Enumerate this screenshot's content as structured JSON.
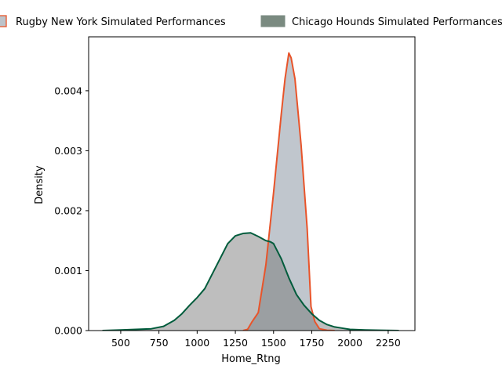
{
  "chart_data": {
    "type": "area",
    "title": "",
    "xlabel": "Home_Rtng",
    "ylabel": "Density",
    "xlim": [
      290,
      2425
    ],
    "ylim": [
      0,
      0.0049
    ],
    "xticks": [
      500,
      750,
      1000,
      1250,
      1500,
      1750,
      2000,
      2250
    ],
    "yticks": [
      0.0,
      0.001,
      0.002,
      0.003,
      0.004
    ],
    "ytick_labels": [
      "0.000",
      "0.001",
      "0.002",
      "0.003",
      "0.004"
    ],
    "legend_placement": "top, above plot, two columns",
    "grid": false,
    "series": [
      {
        "name": "Rugby New York Simulated Performances",
        "fill_color": "#bdc3ca",
        "line_color": "#e8542a",
        "x": [
          1300,
          1330,
          1360,
          1400,
          1450,
          1500,
          1550,
          1575,
          1600,
          1615,
          1640,
          1680,
          1720,
          1745,
          1770,
          1800,
          1850,
          1900
        ],
        "y": [
          0.0,
          2e-05,
          0.00015,
          0.0003,
          0.0011,
          0.0023,
          0.0036,
          0.0042,
          0.00463,
          0.00455,
          0.0042,
          0.0031,
          0.0017,
          0.0004,
          0.00015,
          3e-05,
          5e-06,
          0.0
        ]
      },
      {
        "name": "Chicago Hounds Simulated Performances",
        "fill_color": "#bcbcbc",
        "line_color": "#005c3c",
        "x": [
          380,
          500,
          600,
          700,
          780,
          850,
          900,
          950,
          1000,
          1050,
          1100,
          1150,
          1200,
          1250,
          1300,
          1350,
          1400,
          1450,
          1480,
          1500,
          1550,
          1600,
          1650,
          1700,
          1750,
          1800,
          1850,
          1900,
          1950,
          2000,
          2100,
          2200,
          2320
        ],
        "y": [
          0.0,
          1e-05,
          2e-05,
          3e-05,
          7e-05,
          0.00017,
          0.00028,
          0.00042,
          0.00055,
          0.0007,
          0.00095,
          0.0012,
          0.00145,
          0.00158,
          0.00162,
          0.00163,
          0.00157,
          0.0015,
          0.00148,
          0.00145,
          0.0012,
          0.00088,
          0.0006,
          0.00042,
          0.00028,
          0.00017,
          0.0001,
          6e-05,
          4e-05,
          2e-05,
          1e-05,
          5e-06,
          0.0
        ]
      }
    ]
  }
}
